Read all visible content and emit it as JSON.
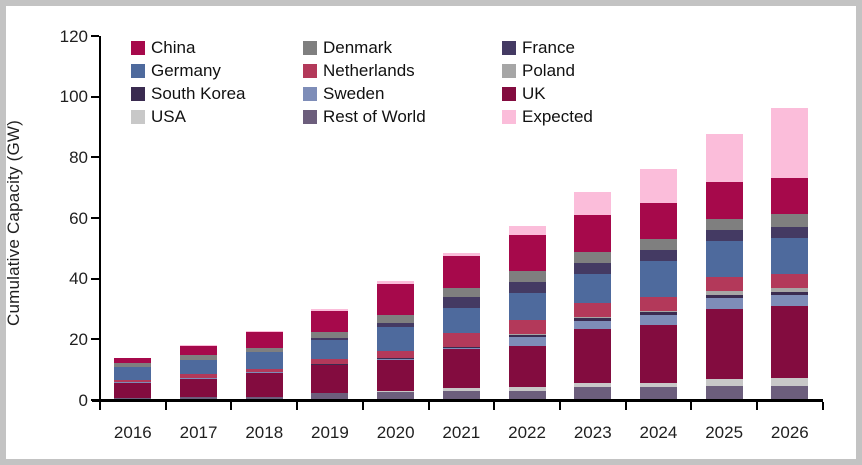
{
  "frame": {
    "border_color": "#c3c3c3",
    "background": "#ffffff"
  },
  "chart_data": {
    "type": "bar",
    "stacked": true,
    "title": "",
    "xlabel": "",
    "ylabel": "Cumulative Capacity (GW)",
    "ylim": [
      0,
      120
    ],
    "yticks": [
      0,
      20,
      40,
      60,
      80,
      100,
      120
    ],
    "grid": false,
    "legend_position": "top-inside-3-columns",
    "categories": [
      "2016",
      "2017",
      "2018",
      "2019",
      "2020",
      "2021",
      "2022",
      "2023",
      "2024",
      "2025",
      "2026"
    ],
    "stack_order_note": "series listed bottom-to-top of the stacked bars",
    "series": [
      {
        "name": "Rest of World",
        "color": "#6C5E7C",
        "values": [
          0.5,
          1.0,
          1.1,
          2.3,
          3.0,
          3.0,
          3.0,
          4.2,
          4.2,
          4.6,
          4.6
        ]
      },
      {
        "name": "USA",
        "color": "#C8C8C8",
        "values": [
          0,
          0,
          0,
          0,
          0.1,
          1.0,
          1.3,
          1.3,
          1.3,
          2.4,
          2.6
        ]
      },
      {
        "name": "UK",
        "color": "#830C3F",
        "values": [
          5.1,
          6.2,
          7.8,
          9.3,
          10.3,
          12.8,
          13.6,
          17.8,
          19.3,
          23.1,
          23.9
        ]
      },
      {
        "name": "Sweden",
        "color": "#7E8DB8",
        "values": [
          0.2,
          0.2,
          0.2,
          0.2,
          0.2,
          0.5,
          2.8,
          2.8,
          3.3,
          3.6,
          3.6
        ]
      },
      {
        "name": "South Korea",
        "color": "#3A2B50",
        "values": [
          0,
          0,
          0,
          0.1,
          0.1,
          0.3,
          0.8,
          0.8,
          0.9,
          0.9,
          0.9
        ]
      },
      {
        "name": "Poland",
        "color": "#A6A6A6",
        "values": [
          0,
          0,
          0,
          0,
          0,
          0,
          0.3,
          0.3,
          0.3,
          1.2,
          1.2
        ]
      },
      {
        "name": "Netherlands",
        "color": "#B3395A",
        "values": [
          0.9,
          1.1,
          1.1,
          1.7,
          2.6,
          4.5,
          4.5,
          4.7,
          4.7,
          4.7,
          4.8
        ]
      },
      {
        "name": "Germany",
        "color": "#4E6A9D",
        "values": [
          4.1,
          4.8,
          5.6,
          6.2,
          7.8,
          8.3,
          9.1,
          9.7,
          11.8,
          11.8,
          11.8
        ]
      },
      {
        "name": "France",
        "color": "#443A63",
        "values": [
          0,
          0,
          0,
          0.8,
          1.3,
          3.5,
          3.5,
          3.5,
          3.5,
          3.6,
          3.7
        ]
      },
      {
        "name": "Denmark",
        "color": "#7F7F7F",
        "values": [
          1.3,
          1.4,
          1.4,
          1.8,
          2.6,
          3.0,
          3.5,
          3.8,
          3.8,
          3.9,
          4.1
        ]
      },
      {
        "name": "China",
        "color": "#A6094B",
        "values": [
          1.6,
          3.0,
          5.2,
          7.1,
          10.4,
          10.5,
          11.9,
          12.0,
          12.0,
          12.0,
          12.0
        ]
      },
      {
        "name": "Expected",
        "color": "#FBBDDA",
        "values": [
          0,
          0.4,
          0.4,
          0.5,
          0.7,
          1.0,
          2.9,
          7.7,
          10.9,
          16.0,
          23.1
        ]
      }
    ],
    "totals": [
      13.7,
      18.1,
      22.8,
      30.0,
      39.1,
      48.4,
      57.2,
      68.6,
      76.0,
      87.8,
      96.3
    ],
    "legend_order": [
      "China",
      "Denmark",
      "France",
      "Germany",
      "Netherlands",
      "Poland",
      "South Korea",
      "Sweden",
      "UK",
      "USA",
      "Rest of World",
      "Expected"
    ]
  }
}
